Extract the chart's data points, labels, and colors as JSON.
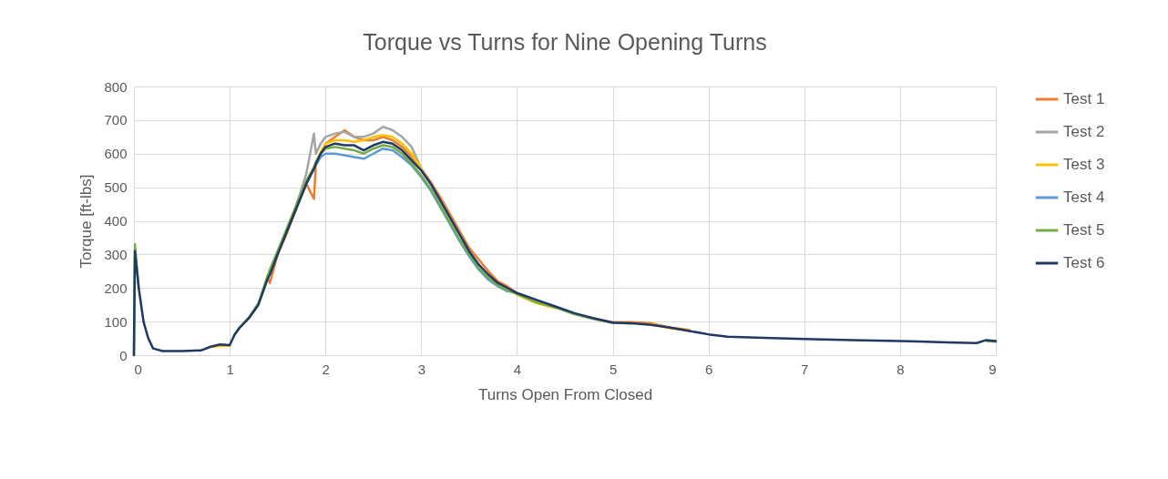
{
  "chart_data": {
    "type": "line",
    "title": "Torque vs Turns for Nine Opening Turns",
    "xlabel": "Turns Open From Closed",
    "ylabel": "Torque [ft-lbs]",
    "x": [
      0,
      0.01,
      0.05,
      0.1,
      0.15,
      0.2,
      0.3,
      0.5,
      0.7,
      0.8,
      0.9,
      1,
      1.05,
      1.1,
      1.2,
      1.3,
      1.4,
      1.42,
      1.5,
      1.6,
      1.7,
      1.8,
      1.88,
      1.9,
      1.95,
      2,
      2.1,
      2.2,
      2.3,
      2.4,
      2.5,
      2.6,
      2.7,
      2.8,
      2.9,
      3,
      3.1,
      3.2,
      3.3,
      3.4,
      3.5,
      3.6,
      3.7,
      3.8,
      3.9,
      4,
      4.2,
      4.4,
      4.6,
      4.8,
      5,
      5.2,
      5.4,
      5.6,
      5.8,
      6,
      6.2,
      6.5,
      7,
      7.5,
      8,
      8.5,
      8.8,
      8.9,
      9
    ],
    "series": [
      {
        "name": "Test 1",
        "color": "#ed7d31",
        "values": [
          null,
          null,
          null,
          null,
          null,
          null,
          null,
          null,
          null,
          null,
          null,
          null,
          null,
          null,
          null,
          null,
          230,
          215,
          300,
          365,
          440,
          510,
          465,
          570,
          600,
          630,
          650,
          670,
          650,
          640,
          640,
          650,
          640,
          620,
          590,
          555,
          515,
          470,
          420,
          370,
          320,
          285,
          250,
          220,
          205,
          185,
          null,
          null,
          null,
          110,
          98,
          98,
          95,
          82,
          75,
          null,
          null,
          null,
          null,
          null,
          null,
          null,
          null,
          null,
          null
        ]
      },
      {
        "name": "Test 2",
        "color": "#a5a5a5",
        "values": [
          null,
          null,
          null,
          null,
          null,
          null,
          null,
          null,
          null,
          null,
          null,
          null,
          null,
          null,
          null,
          null,
          null,
          null,
          null,
          null,
          450,
          540,
          660,
          600,
          630,
          650,
          660,
          665,
          650,
          650,
          660,
          680,
          670,
          650,
          620,
          555,
          null,
          null,
          null,
          null,
          null,
          null,
          null,
          null,
          null,
          null,
          null,
          null,
          null,
          null,
          null,
          null,
          null,
          null,
          null,
          null,
          null,
          null,
          null,
          null,
          null,
          null,
          null,
          null,
          null
        ]
      },
      {
        "name": "Test 3",
        "color": "#ffc000",
        "values": [
          null,
          null,
          null,
          null,
          null,
          null,
          null,
          null,
          null,
          24,
          28,
          28,
          null,
          null,
          null,
          null,
          null,
          null,
          null,
          null,
          null,
          null,
          null,
          575,
          605,
          630,
          640,
          640,
          635,
          640,
          650,
          655,
          650,
          630,
          600,
          555,
          null,
          null,
          null,
          null,
          null,
          null,
          null,
          null,
          null,
          180,
          155,
          140,
          null,
          null,
          null,
          null,
          92,
          80,
          74,
          null,
          null,
          null,
          null,
          null,
          null,
          null,
          null,
          null,
          null
        ]
      },
      {
        "name": "Test 4",
        "color": "#5b9bd5",
        "values": [
          null,
          null,
          null,
          null,
          null,
          null,
          null,
          null,
          null,
          null,
          null,
          null,
          null,
          null,
          null,
          null,
          null,
          null,
          null,
          null,
          null,
          null,
          null,
          565,
          590,
          600,
          600,
          595,
          590,
          585,
          600,
          615,
          610,
          590,
          565,
          530,
          490,
          440,
          390,
          340,
          295,
          255,
          225,
          205,
          190,
          null,
          null,
          null,
          null,
          null,
          null,
          null,
          null,
          null,
          null,
          null,
          null,
          null,
          null,
          null,
          null,
          null,
          null,
          null,
          null
        ]
      },
      {
        "name": "Test 5",
        "color": "#70ad47",
        "values": [
          0,
          330,
          200,
          null,
          null,
          null,
          null,
          null,
          null,
          null,
          null,
          null,
          62,
          82,
          112,
          155,
          240,
          255,
          310,
          380,
          450,
          520,
          560,
          575,
          600,
          615,
          620,
          615,
          610,
          600,
          615,
          625,
          620,
          600,
          570,
          535,
          495,
          445,
          395,
          345,
          300,
          260,
          230,
          208,
          192,
          182,
          158,
          142,
          122,
          108,
          96,
          94,
          null,
          null,
          null,
          null,
          null,
          null,
          null,
          null,
          null,
          null,
          null,
          42,
          40
        ]
      },
      {
        "name": "Test 6",
        "color": "#203864",
        "values": [
          0,
          310,
          200,
          100,
          50,
          20,
          12,
          12,
          14,
          25,
          32,
          30,
          60,
          80,
          110,
          150,
          230,
          240,
          300,
          370,
          440,
          510,
          555,
          570,
          600,
          620,
          630,
          625,
          625,
          610,
          625,
          635,
          630,
          610,
          580,
          550,
          510,
          460,
          410,
          360,
          310,
          270,
          240,
          215,
          200,
          185,
          165,
          145,
          125,
          110,
          97,
          95,
          90,
          82,
          72,
          62,
          55,
          52,
          48,
          45,
          42,
          38,
          36,
          45,
          42
        ]
      }
    ],
    "xlim": [
      0,
      9
    ],
    "xticks": [
      0,
      1,
      2,
      3,
      4,
      5,
      6,
      7,
      8,
      9
    ],
    "ylim": [
      0,
      800
    ],
    "yticks": [
      0,
      100,
      200,
      300,
      400,
      500,
      600,
      700,
      800
    ],
    "grid": true,
    "legend": "right",
    "marker": "none",
    "line_style": "solid"
  }
}
